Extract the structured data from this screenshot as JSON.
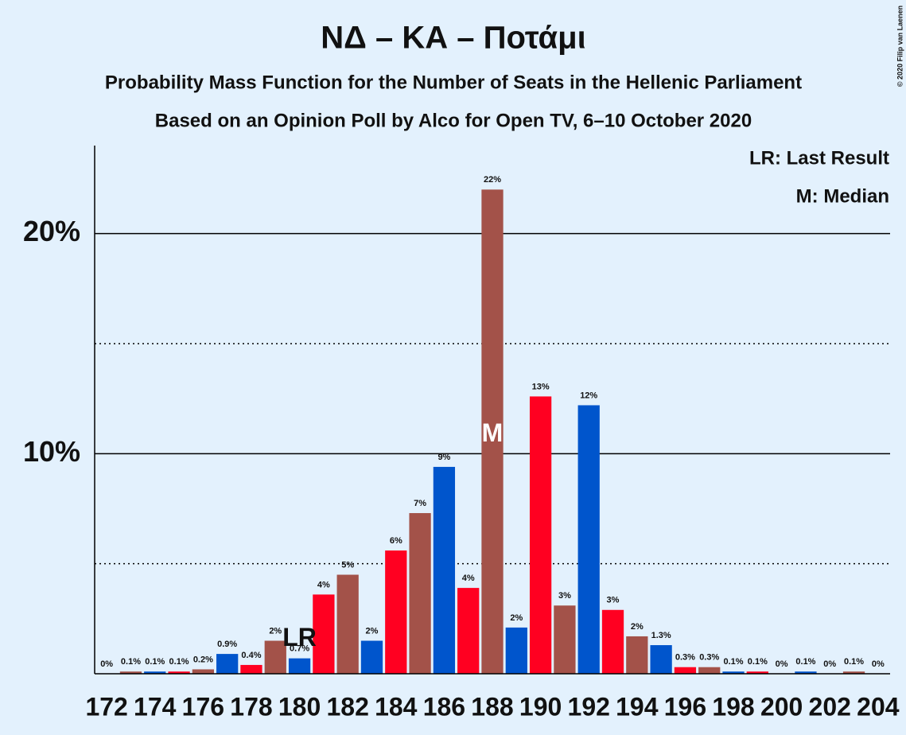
{
  "chart_data": {
    "type": "bar",
    "title": "ΝΔ – ΚΑ – Ποτάμι",
    "subtitle": "Probability Mass Function for the Number of Seats in the Hellenic Parliament",
    "subtitle2": "Based on an Opinion Poll by Alco for Open TV, 6–10 October 2020",
    "copyright": "© 2020 Filip van Laenen",
    "legend": [
      "LR: Last Result",
      "M: Median"
    ],
    "last_result": {
      "label": "LR",
      "x": 180
    },
    "median": {
      "label": "M",
      "x": 188
    },
    "x": [
      172,
      173,
      174,
      175,
      176,
      177,
      178,
      179,
      180,
      181,
      182,
      183,
      184,
      185,
      186,
      187,
      188,
      189,
      190,
      191,
      192,
      193,
      194,
      195,
      196,
      197,
      198,
      199,
      200,
      201,
      202,
      203,
      204
    ],
    "values": [
      0,
      0.1,
      0.1,
      0.1,
      0.2,
      0.9,
      0.4,
      1.5,
      0.7,
      3.6,
      4.5,
      1.5,
      5.6,
      7.3,
      9.4,
      3.9,
      22.0,
      2.1,
      12.6,
      3.1,
      12.2,
      2.9,
      1.7,
      1.3,
      0.3,
      0.3,
      0.1,
      0.1,
      0,
      0.1,
      0,
      0.1,
      0
    ],
    "value_labels": [
      "0%",
      "0.1%",
      "0.1%",
      "0.1%",
      "0.2%",
      "0.9%",
      "0.4%",
      "2%",
      "0.7%",
      "4%",
      "5%",
      "2%",
      "6%",
      "7%",
      "9%",
      "4%",
      "22%",
      "2%",
      "13%",
      "3%",
      "12%",
      "3%",
      "2%",
      "1.3%",
      "0.3%",
      "0.3%",
      "0.1%",
      "0.1%",
      "0%",
      "0.1%",
      "0%",
      "0.1%",
      "0%"
    ],
    "colors": [
      "#ff0021",
      "#a35249",
      "#0055cc",
      "#ff0021",
      "#a35249",
      "#0055cc",
      "#ff0021",
      "#a35249",
      "#0055cc",
      "#ff0021",
      "#a35249",
      "#0055cc",
      "#ff0021",
      "#a35249",
      "#0055cc",
      "#ff0021",
      "#a35249",
      "#0055cc",
      "#ff0021",
      "#a35249",
      "#0055cc",
      "#ff0021",
      "#a35249",
      "#0055cc",
      "#ff0021",
      "#a35249",
      "#0055cc",
      "#ff0021",
      "#a35249",
      "#0055cc",
      "#ff0021",
      "#a35249",
      "#0055cc"
    ],
    "xlim": [
      171.5,
      204.5
    ],
    "xticks": [
      172,
      174,
      176,
      178,
      180,
      182,
      184,
      186,
      188,
      190,
      192,
      194,
      196,
      198,
      200,
      202,
      204
    ],
    "ylim": [
      0,
      24
    ],
    "yticks": [
      {
        "value": 10,
        "label": "10%"
      },
      {
        "value": 20,
        "label": "20%"
      }
    ],
    "minor_yticks": [
      5,
      15
    ],
    "grid": true
  }
}
